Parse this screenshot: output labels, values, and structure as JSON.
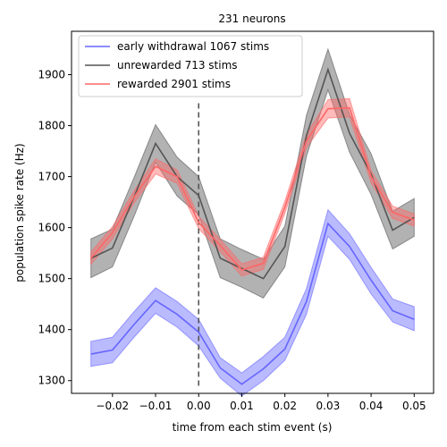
{
  "chart_data": {
    "type": "line",
    "title": "231 neurons",
    "xlabel": "time from each stim event (s)",
    "ylabel": "population spike rate (Hz)",
    "xlim": [
      -0.0295,
      0.0545
    ],
    "ylim": [
      1275,
      1985
    ],
    "xticks": [
      -0.02,
      -0.01,
      0.0,
      0.01,
      0.02,
      0.03,
      0.04,
      0.05
    ],
    "xtick_labels": [
      "−0.02",
      "−0.01",
      "0.00",
      "0.01",
      "0.02",
      "0.03",
      "0.04",
      "0.05"
    ],
    "yticks": [
      1300,
      1400,
      1500,
      1600,
      1700,
      1800,
      1900
    ],
    "ytick_labels": [
      "1300",
      "1400",
      "1500",
      "1600",
      "1700",
      "1800",
      "1900"
    ],
    "x": [
      -0.025,
      -0.02,
      -0.015,
      -0.01,
      -0.005,
      0.0,
      0.005,
      0.01,
      0.015,
      0.02,
      0.025,
      0.03,
      0.035,
      0.04,
      0.045,
      0.05
    ],
    "series": [
      {
        "name": "early withdrawal 1067 stims",
        "color": "#6666ff",
        "values": [
          1352,
          1360,
          1410,
          1457,
          1430,
          1395,
          1325,
          1293,
          1323,
          1362,
          1455,
          1608,
          1563,
          1497,
          1437,
          1420
        ],
        "lower": [
          1328,
          1335,
          1385,
          1432,
          1405,
          1368,
          1305,
          1270,
          1300,
          1340,
          1430,
          1583,
          1538,
          1470,
          1415,
          1398
        ],
        "upper": [
          1377,
          1385,
          1435,
          1482,
          1455,
          1420,
          1345,
          1315,
          1347,
          1385,
          1480,
          1635,
          1588,
          1522,
          1460,
          1445
        ]
      },
      {
        "name": "unrewarded 713 stims",
        "color": "#555555",
        "values": [
          1540,
          1560,
          1660,
          1765,
          1700,
          1663,
          1540,
          1520,
          1500,
          1563,
          1780,
          1910,
          1785,
          1705,
          1595,
          1620
        ],
        "lower": [
          1502,
          1523,
          1622,
          1728,
          1662,
          1625,
          1502,
          1483,
          1462,
          1523,
          1740,
          1870,
          1748,
          1665,
          1558,
          1583
        ],
        "upper": [
          1578,
          1597,
          1698,
          1802,
          1738,
          1700,
          1578,
          1557,
          1538,
          1603,
          1820,
          1950,
          1822,
          1745,
          1632,
          1657
        ]
      },
      {
        "name": "rewarded 2901 stims",
        "color": "#ff6666",
        "values": [
          1540,
          1590,
          1660,
          1720,
          1700,
          1610,
          1565,
          1517,
          1530,
          1640,
          1770,
          1833,
          1835,
          1700,
          1630,
          1615
        ],
        "lower": [
          1528,
          1578,
          1648,
          1705,
          1687,
          1598,
          1553,
          1505,
          1518,
          1628,
          1757,
          1815,
          1817,
          1688,
          1618,
          1603
        ],
        "upper": [
          1552,
          1602,
          1672,
          1735,
          1713,
          1622,
          1577,
          1529,
          1542,
          1652,
          1783,
          1851,
          1853,
          1712,
          1642,
          1627
        ]
      }
    ],
    "annotations": [
      {
        "type": "vline",
        "x": 0.0,
        "y_range": [
          1290,
          1850
        ],
        "style": "dashed",
        "color": "#555555"
      }
    ],
    "legend_position": "top-left",
    "grid": false
  }
}
